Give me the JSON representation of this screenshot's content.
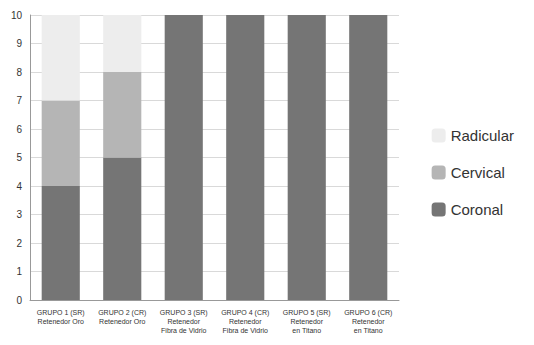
{
  "chart_data": {
    "type": "bar",
    "stacked": true,
    "grid": true,
    "legend": "right",
    "categories": [
      "GRUPO 1 (SR)\nRetenedor Oro",
      "GRUPO 2 (CR)\nRetenedor Oro",
      "GRUPO 3 (SR)\nRetenedor\nFibra de Vidrio",
      "GRUPO 4 (CR)\nRetenedor\nFibra de Vidrio",
      "GRUPO 5 (SR)\nRetenedor\nen Titano",
      "GRUPO 6 (CR)\nRetenedor\nen Titano"
    ],
    "series": [
      {
        "name": "Coronal",
        "color": "#757575",
        "values": [
          4,
          5,
          10,
          10,
          10,
          10
        ]
      },
      {
        "name": "Cervical",
        "color": "#b5b5b5",
        "values": [
          3,
          3,
          0,
          0,
          0,
          0
        ]
      },
      {
        "name": "Radicular",
        "color": "#ededed",
        "values": [
          3,
          2,
          0,
          0,
          0,
          0
        ]
      }
    ],
    "ylim": [
      0,
      10
    ],
    "yticks": [
      0,
      1,
      2,
      3,
      4,
      5,
      6,
      7,
      8,
      9,
      10
    ]
  }
}
